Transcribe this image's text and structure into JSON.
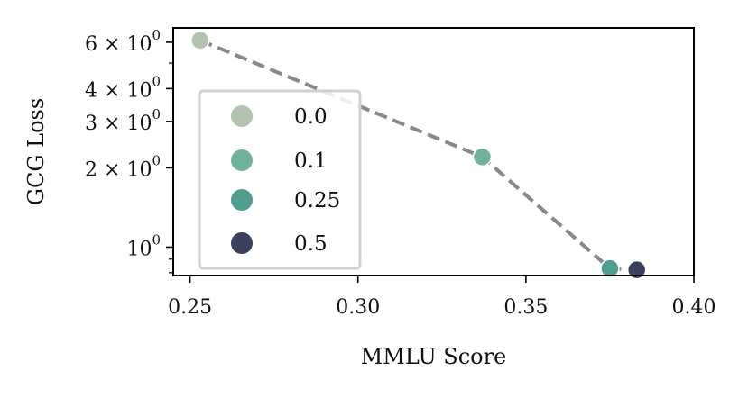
{
  "chart_data": {
    "type": "scatter",
    "xlabel": "MMLU Score",
    "ylabel": "GCG Loss",
    "xlim": [
      0.245,
      0.4
    ],
    "ylim": [
      0.78,
      6.8
    ],
    "yscale": "log",
    "grid": false,
    "legend_position": "center-left",
    "x_ticks": [
      {
        "value": 0.25,
        "label": "0.25"
      },
      {
        "value": 0.3,
        "label": "0.30"
      },
      {
        "value": 0.35,
        "label": "0.35"
      },
      {
        "value": 0.4,
        "label": "0.40"
      }
    ],
    "y_ticks": [
      {
        "value": 1,
        "base": "10",
        "exp": "0"
      },
      {
        "value": 2,
        "base": "2 × 10",
        "exp": "0"
      },
      {
        "value": 3,
        "base": "3 × 10",
        "exp": "0"
      },
      {
        "value": 4,
        "base": "4 × 10",
        "exp": "0"
      },
      {
        "value": 6,
        "base": "6 × 10",
        "exp": "0"
      }
    ],
    "y_minor_ticks": [
      0.8,
      0.9,
      5
    ],
    "line": {
      "style": "dashed",
      "color": "#888888"
    },
    "series": [
      {
        "name": "0.0",
        "color": "#b3c3b0",
        "points": [
          {
            "x": 0.253,
            "y": 6.1
          }
        ]
      },
      {
        "name": "0.1",
        "color": "#6fb39e",
        "points": [
          {
            "x": 0.337,
            "y": 2.2
          }
        ]
      },
      {
        "name": "0.25",
        "color": "#4f9e8f",
        "points": [
          {
            "x": 0.375,
            "y": 0.83
          }
        ]
      },
      {
        "name": "0.5",
        "color": "#3b3f5e",
        "points": [
          {
            "x": 0.383,
            "y": 0.82
          }
        ]
      }
    ]
  }
}
